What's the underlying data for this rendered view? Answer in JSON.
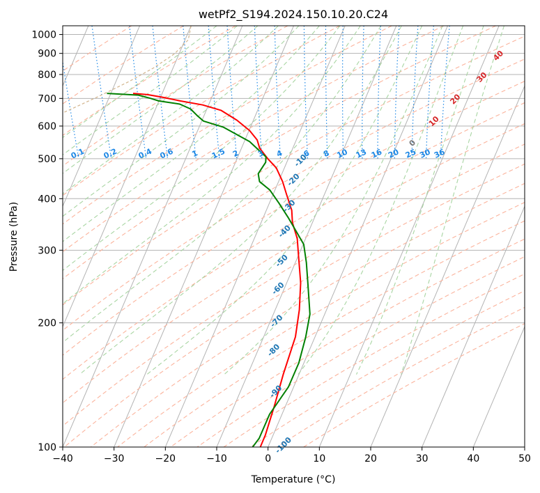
{
  "chart_data": {
    "type": "line",
    "title": "wetPf2_S194.2024.150.10.20.C24",
    "xlabel": "Temperature (°C)",
    "ylabel": "Pressure (hPa)",
    "xlim": [
      -40,
      50
    ],
    "ylim": [
      1050,
      100
    ],
    "y_scale": "log",
    "skew": "skew-T log-p",
    "grid": true,
    "x_ticks": [
      "−40",
      "−30",
      "−20",
      "−10",
      "0",
      "10",
      "20",
      "30",
      "40",
      "50"
    ],
    "y_ticks": [
      "100",
      "200",
      "300",
      "400",
      "500",
      "600",
      "700",
      "800",
      "900",
      "1000"
    ],
    "y_tick_values": [
      100,
      200,
      300,
      400,
      500,
      600,
      700,
      800,
      900,
      1000
    ],
    "series": [
      {
        "color": "#ff0000",
        "points": [
          [
            720,
            -31.9
          ],
          [
            715,
            -29.2
          ],
          [
            705,
            -26.6
          ],
          [
            690,
            -23.3
          ],
          [
            675,
            -19.3
          ],
          [
            655,
            -16.2
          ],
          [
            620,
            -13.9
          ],
          [
            585,
            -12.3
          ],
          [
            555,
            -11.6
          ],
          [
            530,
            -11.8
          ],
          [
            500,
            -11.1
          ],
          [
            475,
            -10.2
          ],
          [
            440,
            -10.1
          ],
          [
            410,
            -10.4
          ],
          [
            375,
            -10.7
          ],
          [
            350,
            -11.6
          ],
          [
            320,
            -12.0
          ],
          [
            290,
            -13.2
          ],
          [
            250,
            -15.0
          ],
          [
            215,
            -17.5
          ],
          [
            185,
            -20.5
          ],
          [
            150,
            -26.0
          ],
          [
            125,
            -30.5
          ],
          [
            107,
            -34.5
          ],
          [
            100,
            -36.5
          ]
        ]
      },
      {
        "color": "#008000",
        "points": [
          [
            720,
            -37.0
          ],
          [
            713,
            -31.0
          ],
          [
            700,
            -28.9
          ],
          [
            690,
            -27.5
          ],
          [
            678,
            -23.7
          ],
          [
            660,
            -22.0
          ],
          [
            637,
            -21.3
          ],
          [
            617,
            -20.5
          ],
          [
            596,
            -17.1
          ],
          [
            550,
            -13.2
          ],
          [
            505,
            -11.3
          ],
          [
            490,
            -11.8
          ],
          [
            460,
            -14.2
          ],
          [
            440,
            -14.6
          ],
          [
            420,
            -13.3
          ],
          [
            390,
            -12.6
          ],
          [
            360,
            -12.0
          ],
          [
            310,
            -11.2
          ],
          [
            280,
            -12.2
          ],
          [
            250,
            -13.6
          ],
          [
            210,
            -15.8
          ],
          [
            185,
            -18.5
          ],
          [
            160,
            -22.0
          ],
          [
            140,
            -26.0
          ],
          [
            120,
            -32.0
          ],
          [
            105,
            -36.0
          ],
          [
            100,
            -38.0
          ]
        ]
      }
    ],
    "isotherm_labels": [],
    "mixing_ratio_labels": [
      "0.1",
      "0.2",
      "0.4",
      "0.6",
      "1",
      "1.5",
      "2",
      "3",
      "4",
      "6",
      "8",
      "10",
      "13",
      "16",
      "20",
      "25",
      "30",
      "36"
    ],
    "dry_adiabat_labels": [
      "-100",
      "-90",
      "-80",
      "-70",
      "-60",
      "-50",
      "-40",
      "-30",
      "-20",
      "-10"
    ],
    "moist_adiabat_labels": [
      "0",
      "10",
      "20",
      "30",
      "40"
    ]
  },
  "style": {
    "isotherm_color": "#b3b3b3",
    "dry_adiabat_color": "#fbb39c",
    "moist_adiabat_color": "#a8d5a2",
    "mixing_ratio_color": "#1e88e5",
    "dry_label_color": "#1f77b4",
    "moist_label_color": "#d62728",
    "mix_label_color": "#1e88e5"
  }
}
